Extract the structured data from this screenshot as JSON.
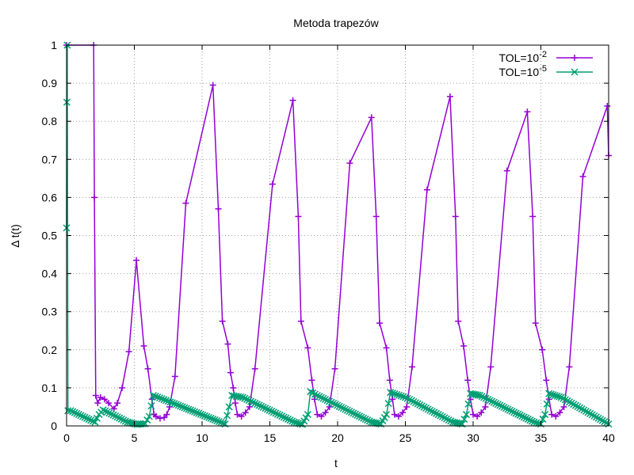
{
  "chart_data": {
    "type": "line",
    "title": "Metoda trapezów",
    "xlabel": "t",
    "ylabel": "Δ t(t)",
    "xlim": [
      0,
      40
    ],
    "ylim": [
      0,
      1
    ],
    "x_ticks": [
      "0",
      "5",
      "10",
      "15",
      "20",
      "25",
      "30",
      "35",
      "40"
    ],
    "y_ticks": [
      "0",
      "0.1",
      "0.2",
      "0.3",
      "0.4",
      "0.5",
      "0.6",
      "0.7",
      "0.8",
      "0.9",
      "1"
    ],
    "grid": true,
    "legend_position": "top-right",
    "series": [
      {
        "name": "TOL=10",
        "name_exponent": "-2",
        "color": "#9400d3",
        "marker": "plus",
        "points": [
          [
            0.0,
            1.0
          ],
          [
            2.0,
            1.0
          ],
          [
            2.05,
            0.6
          ],
          [
            2.15,
            0.08
          ],
          [
            2.3,
            0.06
          ],
          [
            2.5,
            0.075
          ],
          [
            2.8,
            0.07
          ],
          [
            3.1,
            0.06
          ],
          [
            3.5,
            0.045
          ],
          [
            3.75,
            0.06
          ],
          [
            4.1,
            0.1
          ],
          [
            4.6,
            0.195
          ],
          [
            5.15,
            0.435
          ],
          [
            5.7,
            0.21
          ],
          [
            6.0,
            0.15
          ],
          [
            6.3,
            0.07
          ],
          [
            6.45,
            0.03
          ],
          [
            6.6,
            0.025
          ],
          [
            6.9,
            0.02
          ],
          [
            7.2,
            0.022
          ],
          [
            7.4,
            0.03
          ],
          [
            7.6,
            0.05
          ],
          [
            8.0,
            0.13
          ],
          [
            8.8,
            0.585
          ],
          [
            10.8,
            0.895
          ],
          [
            11.2,
            0.57
          ],
          [
            11.5,
            0.275
          ],
          [
            11.9,
            0.215
          ],
          [
            12.1,
            0.14
          ],
          [
            12.3,
            0.1
          ],
          [
            12.45,
            0.06
          ],
          [
            12.6,
            0.03
          ],
          [
            12.9,
            0.025
          ],
          [
            13.2,
            0.035
          ],
          [
            13.5,
            0.05
          ],
          [
            13.9,
            0.15
          ],
          [
            15.2,
            0.635
          ],
          [
            16.7,
            0.855
          ],
          [
            17.1,
            0.55
          ],
          [
            17.3,
            0.275
          ],
          [
            17.8,
            0.205
          ],
          [
            18.1,
            0.12
          ],
          [
            18.3,
            0.07
          ],
          [
            18.5,
            0.03
          ],
          [
            18.8,
            0.025
          ],
          [
            19.1,
            0.035
          ],
          [
            19.4,
            0.05
          ],
          [
            19.8,
            0.15
          ],
          [
            20.9,
            0.69
          ],
          [
            22.5,
            0.81
          ],
          [
            22.85,
            0.55
          ],
          [
            23.1,
            0.27
          ],
          [
            23.6,
            0.205
          ],
          [
            23.85,
            0.12
          ],
          [
            24.05,
            0.07
          ],
          [
            24.2,
            0.03
          ],
          [
            24.5,
            0.025
          ],
          [
            24.8,
            0.035
          ],
          [
            25.1,
            0.05
          ],
          [
            25.5,
            0.155
          ],
          [
            26.6,
            0.62
          ],
          [
            28.3,
            0.865
          ],
          [
            28.7,
            0.55
          ],
          [
            28.9,
            0.275
          ],
          [
            29.3,
            0.21
          ],
          [
            29.6,
            0.12
          ],
          [
            29.8,
            0.07
          ],
          [
            30.0,
            0.03
          ],
          [
            30.3,
            0.025
          ],
          [
            30.6,
            0.035
          ],
          [
            30.9,
            0.05
          ],
          [
            31.3,
            0.155
          ],
          [
            32.5,
            0.67
          ],
          [
            34.0,
            0.825
          ],
          [
            34.4,
            0.55
          ],
          [
            34.6,
            0.27
          ],
          [
            35.1,
            0.2
          ],
          [
            35.4,
            0.12
          ],
          [
            35.6,
            0.07
          ],
          [
            35.8,
            0.03
          ],
          [
            36.1,
            0.025
          ],
          [
            36.4,
            0.035
          ],
          [
            36.7,
            0.05
          ],
          [
            37.1,
            0.155
          ],
          [
            38.1,
            0.655
          ],
          [
            39.9,
            0.84
          ],
          [
            40.0,
            0.71
          ]
        ]
      },
      {
        "name": "TOL=10",
        "name_exponent": "-5",
        "color": "#009e73",
        "marker": "cross",
        "points": [
          [
            0.0,
            0.52
          ],
          [
            0.02,
            0.85
          ],
          [
            0.05,
            1.0
          ],
          [
            0.1,
            0.04
          ],
          [
            0.3,
            0.04
          ],
          [
            2.1,
            0.01
          ],
          [
            2.4,
            0.03
          ],
          [
            2.7,
            0.042
          ],
          [
            4.5,
            0.01
          ],
          [
            5.2,
            0.004
          ],
          [
            5.8,
            0.006
          ],
          [
            6.1,
            0.025
          ],
          [
            6.4,
            0.08
          ],
          [
            7.5,
            0.065
          ],
          [
            11.7,
            0.005
          ],
          [
            12.0,
            0.05
          ],
          [
            12.2,
            0.08
          ],
          [
            13.0,
            0.075
          ],
          [
            16.8,
            0.01
          ],
          [
            17.4,
            0.004
          ],
          [
            17.8,
            0.03
          ],
          [
            18.0,
            0.09
          ],
          [
            18.5,
            0.08
          ],
          [
            22.5,
            0.01
          ],
          [
            23.2,
            0.005
          ],
          [
            23.6,
            0.03
          ],
          [
            23.9,
            0.088
          ],
          [
            25.0,
            0.075
          ],
          [
            28.5,
            0.01
          ],
          [
            29.2,
            0.005
          ],
          [
            29.5,
            0.03
          ],
          [
            29.8,
            0.085
          ],
          [
            30.5,
            0.08
          ],
          [
            34.5,
            0.01
          ],
          [
            35.0,
            0.005
          ],
          [
            35.3,
            0.03
          ],
          [
            35.6,
            0.085
          ],
          [
            36.5,
            0.075
          ],
          [
            40.0,
            0.005
          ]
        ]
      }
    ]
  }
}
